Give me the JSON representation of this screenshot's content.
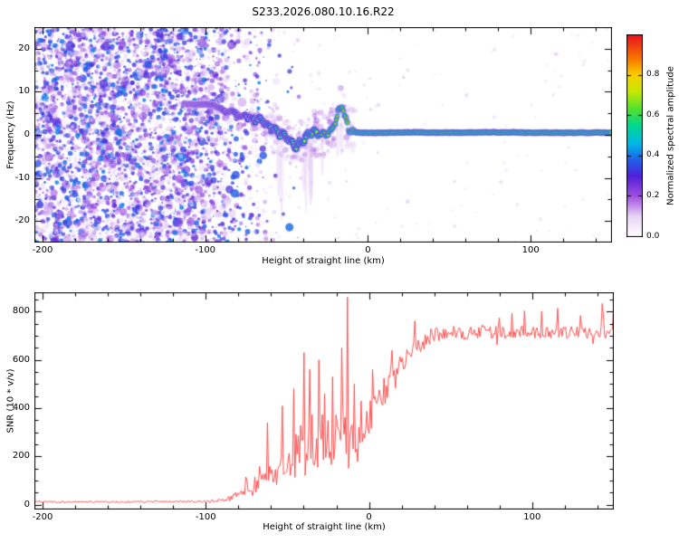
{
  "chart_data": [
    {
      "type": "heatmap",
      "title": "S233.2026.080.10.16.R22",
      "xlabel": "Height of straight line (km)",
      "ylabel": "Frequency (Hz)",
      "xlim": [
        -205,
        150
      ],
      "ylim": [
        -25,
        25
      ],
      "xtick_labels": [
        "-200",
        "-100",
        "0",
        "100"
      ],
      "ytick_labels": [
        "-20",
        "-10",
        "0",
        "10",
        "20"
      ],
      "colorbar": {
        "label": "Normalized spectral amplitude",
        "tick_labels": [
          "0.0",
          "0.2",
          "0.4",
          "0.6",
          "0.8"
        ],
        "vmin": 0,
        "vmax": 1
      },
      "colormap": [
        [
          0,
          "#ffffff"
        ],
        [
          0.1,
          "#e8d5f5"
        ],
        [
          0.2,
          "#a050e0"
        ],
        [
          0.3,
          "#5020d8"
        ],
        [
          0.38,
          "#2060e8"
        ],
        [
          0.46,
          "#00b8e8"
        ],
        [
          0.55,
          "#00d890"
        ],
        [
          0.63,
          "#50e030"
        ],
        [
          0.72,
          "#c8e800"
        ],
        [
          0.8,
          "#f8d000"
        ],
        [
          0.88,
          "#f87800"
        ],
        [
          1,
          "#e81020"
        ]
      ],
      "noise_region": {
        "x_start": -205,
        "x_dense_until": -115,
        "x_end": -45,
        "description": "broadband speckle noise (amplitude 0.05-0.45) filling all frequencies, fading out toward the right"
      },
      "signal_trace": [
        [
          -113,
          7.2,
          0.5
        ],
        [
          -106,
          7.0,
          0.52
        ],
        [
          -100,
          7.1,
          0.55
        ],
        [
          -95,
          6.9,
          0.55
        ],
        [
          -91,
          6.2,
          0.55
        ],
        [
          -87,
          5.2,
          0.58
        ],
        [
          -83,
          5.6,
          0.58
        ],
        [
          -79,
          4.2,
          0.6
        ],
        [
          -75,
          4.6,
          0.6
        ],
        [
          -71,
          3.6,
          0.62
        ],
        [
          -67,
          3.9,
          0.62
        ],
        [
          -63,
          2.6,
          0.65
        ],
        [
          -59,
          1.6,
          0.65
        ],
        [
          -55,
          0.6,
          0.68
        ],
        [
          -51,
          -0.4,
          0.68
        ],
        [
          -47,
          -1.6,
          0.7
        ],
        [
          -44,
          -2.6,
          0.7
        ],
        [
          -41,
          -1.8,
          0.72
        ],
        [
          -38,
          -0.4,
          0.75
        ],
        [
          -35,
          0.6,
          0.78
        ],
        [
          -31,
          0.4,
          0.8
        ],
        [
          -27,
          0.1,
          0.82
        ],
        [
          -23,
          0.8,
          0.84
        ],
        [
          -20,
          3.0,
          0.85
        ],
        [
          -18,
          5.8,
          0.86
        ],
        [
          -16,
          6.8,
          0.86
        ],
        [
          -14,
          4.0,
          0.88
        ],
        [
          -12,
          1.6,
          0.9
        ],
        [
          -9,
          0.7,
          0.92
        ],
        [
          -5,
          0.5,
          0.94
        ],
        [
          0,
          0.5,
          0.95
        ],
        [
          10,
          0.5,
          0.96
        ],
        [
          25,
          0.6,
          0.96
        ],
        [
          50,
          0.5,
          0.97
        ],
        [
          75,
          0.6,
          0.97
        ],
        [
          100,
          0.5,
          0.97
        ],
        [
          125,
          0.5,
          0.97
        ],
        [
          150,
          0.5,
          0.97
        ]
      ]
    },
    {
      "type": "line",
      "xlabel": "Height of straight line (km)",
      "ylabel": "SNR (10 * v/v)",
      "xlim": [
        -205,
        150
      ],
      "ylim": [
        -20,
        880
      ],
      "xtick_labels": [
        "-200",
        "-100",
        "0",
        "100"
      ],
      "ytick_labels": [
        "0",
        "200",
        "400",
        "600",
        "800"
      ],
      "color": "#ff4040",
      "envelope": [
        [
          -205,
          12,
          8
        ],
        [
          -160,
          12,
          8
        ],
        [
          -120,
          13,
          8
        ],
        [
          -100,
          14,
          10
        ],
        [
          -90,
          18,
          14
        ],
        [
          -84,
          30,
          24
        ],
        [
          -79,
          55,
          45
        ],
        [
          -75,
          90,
          75
        ],
        [
          -71,
          70,
          60
        ],
        [
          -67,
          130,
          105
        ],
        [
          -63,
          100,
          85
        ],
        [
          -59,
          170,
          140
        ],
        [
          -55,
          130,
          110
        ],
        [
          -51,
          200,
          170
        ],
        [
          -47,
          160,
          140
        ],
        [
          -43,
          260,
          210
        ],
        [
          -39,
          210,
          180
        ],
        [
          -35,
          310,
          250
        ],
        [
          -31,
          250,
          210
        ],
        [
          -27,
          300,
          250
        ],
        [
          -23,
          270,
          230
        ],
        [
          -19,
          320,
          260
        ],
        [
          -15,
          300,
          250
        ],
        [
          -11,
          250,
          210
        ],
        [
          -7,
          260,
          210
        ],
        [
          -3,
          320,
          200
        ],
        [
          0,
          390,
          170
        ],
        [
          4,
          440,
          150
        ],
        [
          8,
          480,
          140
        ],
        [
          12,
          510,
          130
        ],
        [
          16,
          550,
          120
        ],
        [
          20,
          590,
          110
        ],
        [
          25,
          630,
          95
        ],
        [
          30,
          665,
          85
        ],
        [
          35,
          695,
          75
        ],
        [
          40,
          712,
          65
        ],
        [
          50,
          722,
          60
        ],
        [
          60,
          716,
          58
        ],
        [
          70,
          722,
          56
        ],
        [
          80,
          718,
          55
        ],
        [
          90,
          722,
          55
        ],
        [
          100,
          716,
          55
        ],
        [
          110,
          721,
          55
        ],
        [
          120,
          717,
          55
        ],
        [
          130,
          722,
          55
        ],
        [
          140,
          716,
          55
        ],
        [
          150,
          718,
          55
        ]
      ],
      "spikes": [
        [
          -62,
          340
        ],
        [
          -53,
          410
        ],
        [
          -46,
          480
        ],
        [
          -40,
          630
        ],
        [
          -36,
          560
        ],
        [
          -31,
          600
        ],
        [
          -27,
          460
        ],
        [
          -22,
          530
        ],
        [
          -17,
          650
        ],
        [
          -13,
          860
        ],
        [
          -9,
          500
        ],
        [
          -5,
          430
        ],
        [
          2,
          560
        ],
        [
          14,
          640
        ]
      ]
    }
  ]
}
